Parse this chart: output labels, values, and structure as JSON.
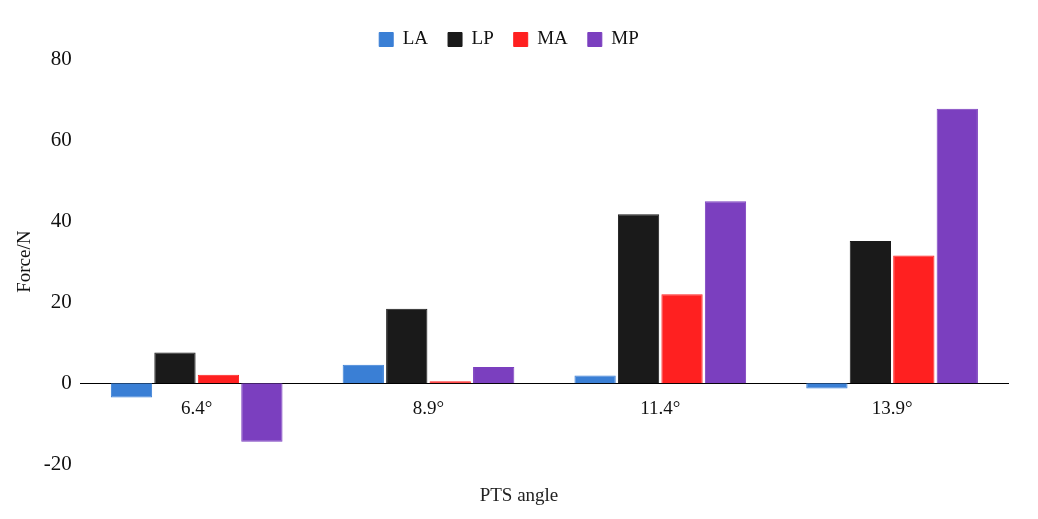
{
  "chart_data": {
    "type": "bar",
    "xlabel": "PTS angle",
    "ylabel": "Force/N",
    "categories": [
      "6.4°",
      "8.9°",
      "11.4°",
      "13.9°"
    ],
    "series": [
      {
        "name": "LA",
        "color": "#3a7fd5",
        "values": [
          -3.5,
          4.6,
          1.9,
          -1.3
        ]
      },
      {
        "name": "LP",
        "color": "#1a1a1a",
        "values": [
          7.6,
          18.4,
          41.7,
          35.1
        ]
      },
      {
        "name": "MA",
        "color": "#ff2020",
        "values": [
          2.1,
          0.5,
          22,
          31.5
        ]
      },
      {
        "name": "MP",
        "color": "#7b3fbf",
        "values": [
          -14.4,
          4,
          44.9,
          67.7
        ]
      }
    ],
    "ylim": [
      -20,
      80
    ],
    "yticks": [
      -20,
      0,
      20,
      40,
      60,
      80
    ],
    "grid": false,
    "legend": "top"
  }
}
